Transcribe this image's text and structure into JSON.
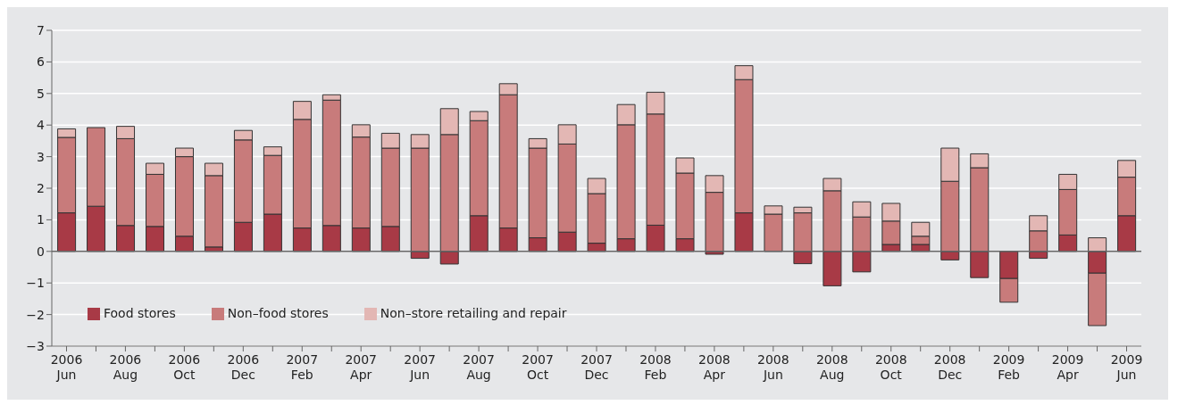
{
  "chart_data": {
    "type": "bar",
    "stacked": true,
    "categories": [
      "2006 Jun",
      null,
      "2006 Aug",
      null,
      "2006 Oct",
      null,
      "2006 Dec",
      null,
      "2007 Feb",
      null,
      "2007 Apr",
      null,
      "2007 Jun",
      null,
      "2007 Aug",
      null,
      "2007 Oct",
      null,
      "2007 Dec",
      null,
      "2008 Feb",
      null,
      "2008 Apr",
      null,
      "2008 Jun",
      null,
      "2008 Aug",
      null,
      "2008 Oct",
      null,
      "2008 Dec",
      null,
      "2009 Feb",
      null,
      "2009 Apr",
      null,
      "2009 Jun"
    ],
    "series": [
      {
        "name": "Food stores",
        "color": "#a83a46",
        "values": [
          1.22,
          1.43,
          0.82,
          0.79,
          0.48,
          0.14,
          0.92,
          1.18,
          0.74,
          0.82,
          0.74,
          0.79,
          -0.22,
          -0.4,
          1.13,
          0.74,
          0.43,
          0.61,
          0.26,
          0.4,
          0.83,
          0.4,
          -0.09,
          1.22,
          0,
          -0.39,
          -1.09,
          -0.65,
          0.22,
          0.22,
          -0.27,
          -0.83,
          -0.86,
          -0.22,
          0.52,
          -0.69,
          1.13
        ]
      },
      {
        "name": "Non–food stores",
        "color": "#c87b7b",
        "values": [
          2.39,
          2.49,
          2.75,
          1.65,
          2.52,
          2.26,
          2.61,
          1.86,
          3.44,
          3.97,
          2.88,
          2.48,
          3.27,
          3.7,
          3.01,
          4.22,
          2.84,
          2.79,
          1.57,
          3.61,
          3.52,
          2.08,
          1.87,
          4.22,
          1.18,
          1.22,
          1.92,
          1.09,
          0.74,
          0.26,
          2.22,
          2.65,
          -0.75,
          0.65,
          1.44,
          -1.66,
          1.22
        ]
      },
      {
        "name": "Non–store retailing and repair",
        "color": "#e3b7b4",
        "values": [
          0.27,
          null,
          0.39,
          0.35,
          0.27,
          0.39,
          0.3,
          0.27,
          0.57,
          0.17,
          0.39,
          0.47,
          0.43,
          0.82,
          0.29,
          0.35,
          0.3,
          0.61,
          0.48,
          0.64,
          0.69,
          0.48,
          0.53,
          0.44,
          0.26,
          0.18,
          0.39,
          0.48,
          0.56,
          0.44,
          1.05,
          0.44,
          null,
          0.48,
          0.48,
          0.43,
          0.53
        ]
      }
    ],
    "ylim": [
      -3,
      7
    ],
    "yticks": [
      -3,
      -2,
      -1,
      0,
      1,
      2,
      3,
      4,
      5,
      6,
      7
    ],
    "grid": "y",
    "legend": "bottom left"
  }
}
